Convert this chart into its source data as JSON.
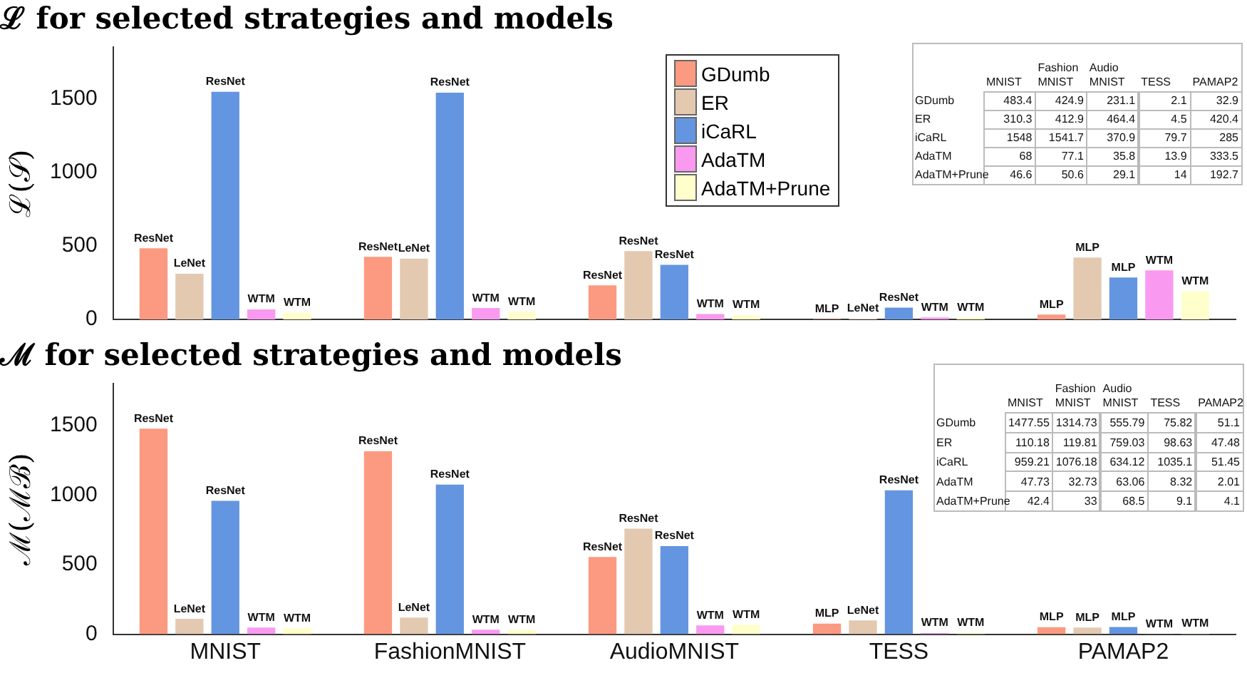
{
  "chart_data": [
    {
      "type": "bar",
      "title": "ℒ for selected strategies and models",
      "ylabel": "ℒ(𝒮)",
      "categories": [
        null,
        null,
        null,
        null,
        null
      ],
      "series": [
        {
          "name": "GDumb",
          "color": "#fb9a80",
          "values": [
            483.4,
            424.9,
            231.1,
            2.1,
            32.9
          ],
          "value_labels": [
            "ResNet",
            "ResNet",
            "ResNet",
            "MLP",
            "MLP"
          ]
        },
        {
          "name": "ER",
          "color": "#e3c9b0",
          "values": [
            310.3,
            412.9,
            464.4,
            4.5,
            420.4
          ],
          "value_labels": [
            "LeNet",
            "LeNet",
            "ResNet",
            "LeNet",
            "MLP"
          ]
        },
        {
          "name": "iCaRL",
          "color": "#6495e0",
          "values": [
            1548,
            1541.7,
            370.9,
            79.7,
            285
          ],
          "value_labels": [
            "ResNet",
            "ResNet",
            "ResNet",
            "ResNet",
            "MLP"
          ]
        },
        {
          "name": "AdaTM",
          "color": "#f99af0",
          "values": [
            68,
            77.1,
            35.8,
            13.9,
            333.5
          ],
          "value_labels": [
            "WTM",
            "WTM",
            "WTM",
            "WTM",
            "WTM"
          ]
        },
        {
          "name": "AdaTM+Prune",
          "color": "#ffffcc",
          "values": [
            46.6,
            50.6,
            29.1,
            14,
            192.7
          ],
          "value_labels": [
            "WTM",
            "WTM",
            "WTM",
            "WTM",
            "WTM"
          ]
        }
      ],
      "ylim": [
        0,
        1850
      ],
      "yticks": [
        0,
        500,
        1000,
        1500
      ],
      "grid": false,
      "legend": "top right",
      "tick_labels": "y"
    },
    {
      "type": "heatmap",
      "categories": [
        "MNIST",
        "Fashion MNIST",
        "Audio MNIST",
        "TESS",
        "PAMAP2"
      ],
      "y_categories": [
        "GDumb",
        "ER",
        "iCaRL",
        "AdaTM",
        "AdaTM+Prune"
      ],
      "cells": [
        [
          483.4,
          424.9,
          231.1,
          2.1,
          32.9
        ],
        [
          310.3,
          412.9,
          464.4,
          4.5,
          420.4
        ],
        [
          1548,
          1541.7,
          370.9,
          79.7,
          285
        ],
        [
          68,
          77.1,
          35.8,
          13.9,
          333.5
        ],
        [
          46.6,
          50.6,
          29.1,
          14,
          192.7
        ]
      ],
      "data_labels": true
    },
    {
      "type": "bar",
      "title": "ℳ for selected strategies and models",
      "ylabel": "ℳ(ℳℬ)",
      "categories": [
        "MNIST",
        "FashionMNIST",
        "AudioMNIST",
        "TESS",
        "PAMAP2"
      ],
      "series": [
        {
          "color": "#fb9a80",
          "values": [
            1477.55,
            1314.73,
            555.79,
            75.82,
            51.1
          ],
          "value_labels": [
            "ResNet",
            "ResNet",
            "ResNet",
            "MLP",
            "MLP"
          ]
        },
        {
          "color": "#e3c9b0",
          "values": [
            110.18,
            119.81,
            759.03,
            98.63,
            47.48
          ],
          "value_labels": [
            "LeNet",
            "LeNet",
            "ResNet",
            "LeNet",
            "MLP"
          ]
        },
        {
          "color": "#6495e0",
          "values": [
            959.21,
            1076.18,
            634.12,
            1035.1,
            51.45
          ],
          "value_labels": [
            "ResNet",
            "ResNet",
            "ResNet",
            "ResNet",
            "MLP"
          ]
        },
        {
          "color": "#f99af0",
          "values": [
            47.73,
            32.73,
            63.06,
            8.32,
            2.01
          ],
          "value_labels": [
            "WTM",
            "WTM",
            "WTM",
            "WTM",
            "WTM"
          ]
        },
        {
          "color": "#ffffcc",
          "values": [
            42.4,
            33,
            68.5,
            9.1,
            4.1
          ],
          "value_labels": [
            "WTM",
            "WTM",
            "WTM",
            "WTM",
            "WTM"
          ]
        }
      ],
      "ylim": [
        0,
        1800
      ],
      "yticks": [
        0,
        500,
        1000,
        1500
      ],
      "grid": false
    },
    {
      "type": "heatmap",
      "categories": [
        "MNIST",
        "Fashion MNIST",
        "Audio MNIST",
        "TESS",
        "PAMAP2"
      ],
      "y_categories": [
        "GDumb",
        "ER",
        "iCaRL",
        "AdaTM",
        "AdaTM+Prune"
      ],
      "cells": [
        [
          1477.55,
          1314.73,
          555.79,
          75.82,
          51.1
        ],
        [
          110.18,
          119.81,
          759.03,
          98.63,
          47.48
        ],
        [
          959.21,
          1076.18,
          634.12,
          1035.1,
          51.45
        ],
        [
          47.73,
          32.73,
          63.06,
          8.32,
          2.01
        ],
        [
          42.4,
          33,
          68.5,
          9.1,
          4.1
        ]
      ],
      "data_labels": true
    }
  ]
}
